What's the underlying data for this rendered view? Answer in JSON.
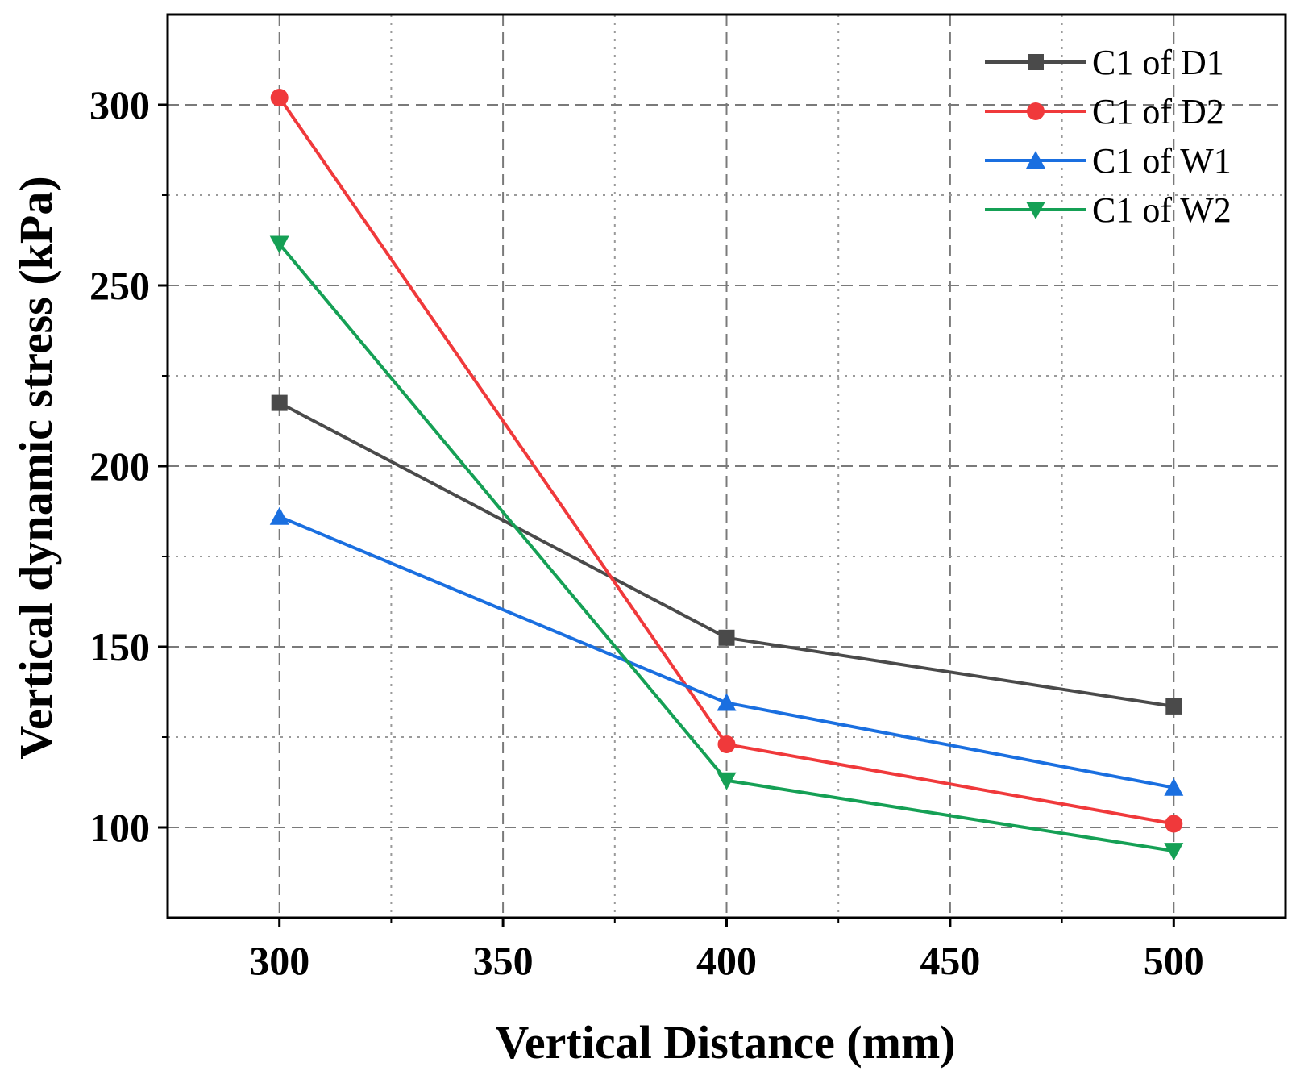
{
  "chart_data": {
    "type": "line",
    "title": "",
    "xlabel": "Vertical Distance (mm)",
    "ylabel": "Vertical dynamic stress (kPa)",
    "x": [
      300,
      400,
      500
    ],
    "xlim": [
      275,
      525
    ],
    "ylim": [
      75,
      325
    ],
    "xticks": [
      300,
      350,
      400,
      450,
      500
    ],
    "yticks": [
      100,
      150,
      200,
      250,
      300
    ],
    "grid": true,
    "legend_position": "top-right",
    "series": [
      {
        "name": "C1 of D1",
        "color": "#4a4a4a",
        "marker": "square",
        "values": [
          217.5,
          152.5,
          133.5
        ]
      },
      {
        "name": "C1 of D2",
        "color": "#f0393b",
        "marker": "circle",
        "values": [
          302,
          123,
          101
        ]
      },
      {
        "name": "C1 of W1",
        "color": "#1a6fe0",
        "marker": "triangle-up",
        "values": [
          186,
          134.5,
          111
        ]
      },
      {
        "name": "C1 of W2",
        "color": "#15a055",
        "marker": "triangle-down",
        "values": [
          261.5,
          113,
          93.5
        ]
      }
    ]
  }
}
